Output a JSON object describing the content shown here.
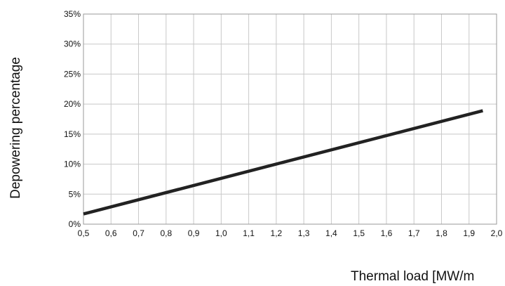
{
  "chart_data": {
    "type": "line",
    "title": "",
    "xlabel": "Thermal load [MW/m",
    "ylabel": "Depowering percentage",
    "xlim": [
      0.5,
      2.0
    ],
    "ylim": [
      0,
      35
    ],
    "grid": true,
    "x_ticks": [
      0.5,
      0.6,
      0.7,
      0.8,
      0.9,
      1.0,
      1.1,
      1.2,
      1.3,
      1.4,
      1.5,
      1.6,
      1.7,
      1.8,
      1.9,
      2.0
    ],
    "x_tick_labels": [
      "0,5",
      "0,6",
      "0,7",
      "0,8",
      "0,9",
      "1,0",
      "1,1",
      "1,2",
      "1,3",
      "1,4",
      "1,5",
      "1,6",
      "1,7",
      "1,8",
      "1,9",
      "2,0"
    ],
    "y_ticks": [
      0,
      5,
      10,
      15,
      20,
      25,
      30,
      35
    ],
    "y_tick_labels": [
      "0%",
      "5%",
      "10%",
      "15%",
      "20%",
      "25%",
      "30%",
      "35%"
    ],
    "series": [
      {
        "x": [
          0.5,
          1.95
        ],
        "y": [
          1.7,
          18.9
        ],
        "color": "#222222"
      }
    ]
  }
}
